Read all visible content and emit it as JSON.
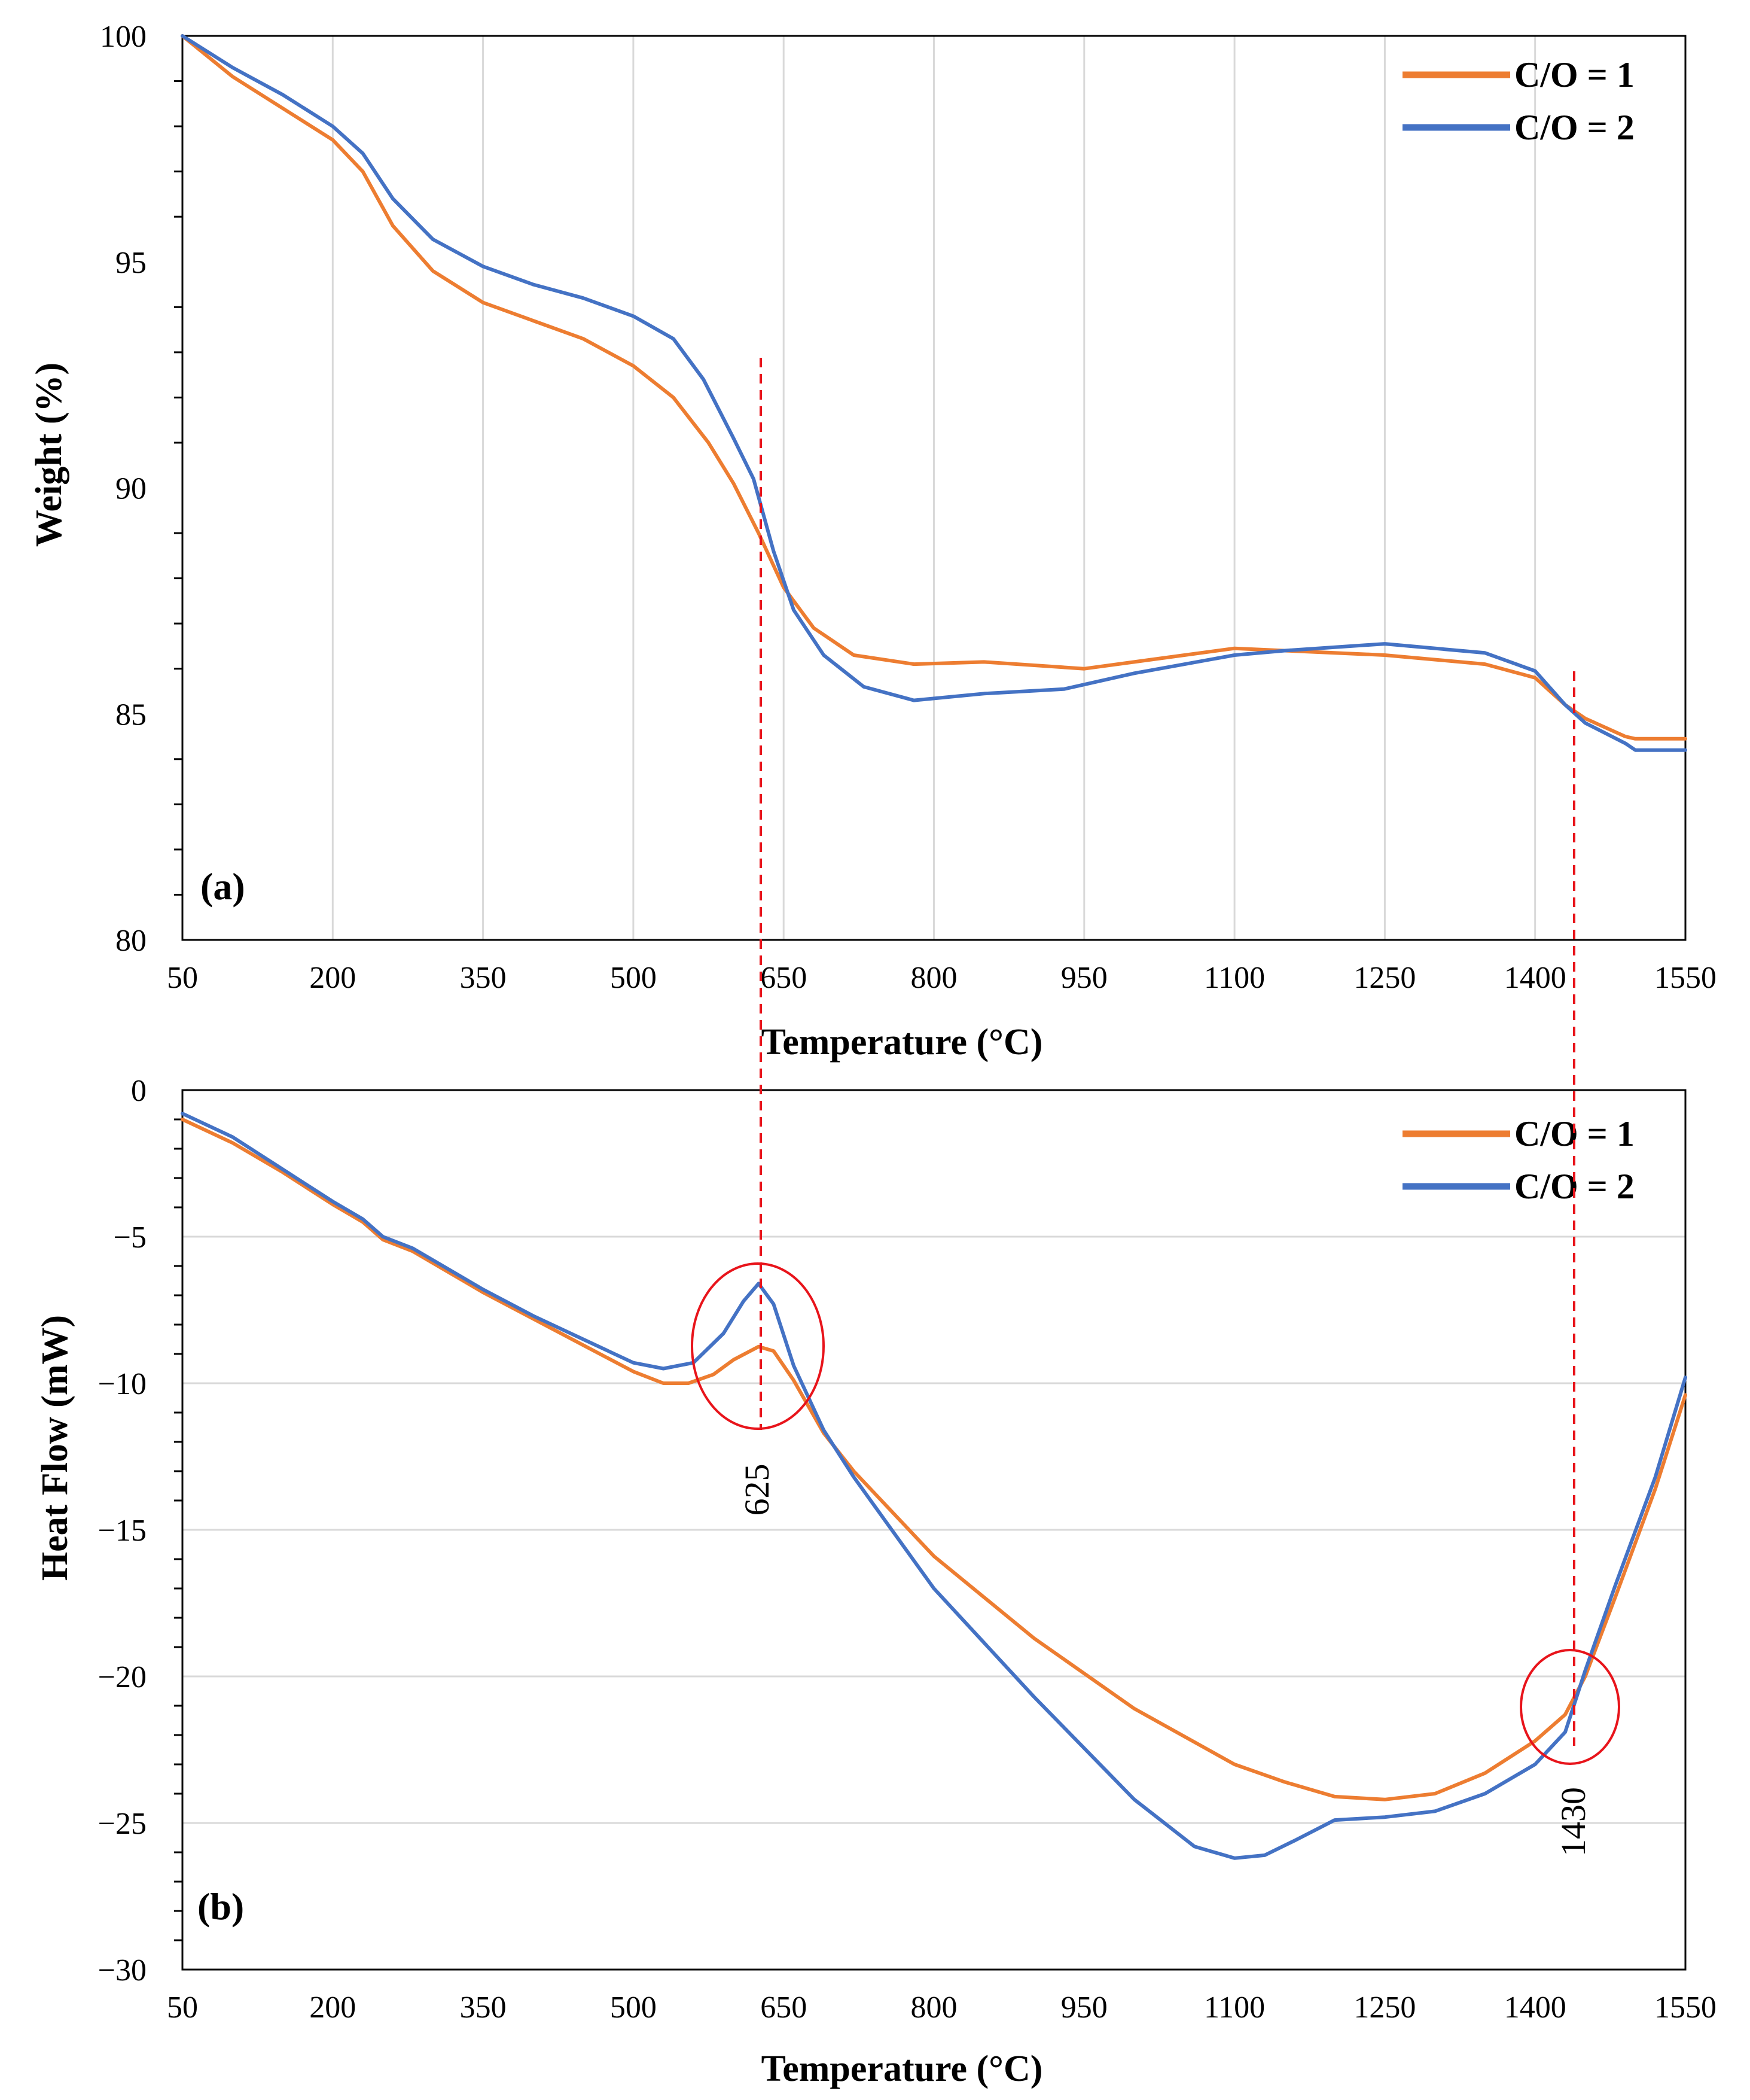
{
  "colors": {
    "series_1": "#ED7D31",
    "series_2": "#4472C4",
    "marker": "#E8141B",
    "grid": "#D9D9D9",
    "axis": "#000000"
  },
  "chart_data": [
    {
      "id": "a",
      "type": "line",
      "panel_label": "(a)",
      "xlabel": "Temperature (°C)",
      "ylabel": "Weight (%)",
      "xlim": [
        50,
        1550
      ],
      "ylim": [
        80,
        100
      ],
      "xticks": [
        50,
        200,
        350,
        500,
        650,
        800,
        950,
        1100,
        1250,
        1400,
        1550
      ],
      "xtick_labels": [
        "50",
        "200",
        "350",
        "500",
        "650",
        "800",
        "950",
        "1100",
        "1250",
        "1400",
        "1550"
      ],
      "yticks": [
        80,
        85,
        90,
        95,
        100
      ],
      "ytick_labels": [
        "80",
        "85",
        "90",
        "95",
        "100"
      ],
      "grid": "vertical",
      "legend_position": "top-right",
      "series": [
        {
          "name": "C/O = 1",
          "color": "#ED7D31",
          "points": [
            [
              50,
              100
            ],
            [
              100,
              99.1
            ],
            [
              150,
              98.4
            ],
            [
              200,
              97.7
            ],
            [
              230,
              97.0
            ],
            [
              260,
              95.8
            ],
            [
              300,
              94.8
            ],
            [
              350,
              94.1
            ],
            [
              400,
              93.7
            ],
            [
              450,
              93.3
            ],
            [
              500,
              92.7
            ],
            [
              540,
              92.0
            ],
            [
              575,
              91.0
            ],
            [
              600,
              90.1
            ],
            [
              625,
              89.0
            ],
            [
              650,
              87.8
            ],
            [
              680,
              86.9
            ],
            [
              720,
              86.3
            ],
            [
              780,
              86.1
            ],
            [
              850,
              86.15
            ],
            [
              950,
              86.0
            ],
            [
              1050,
              86.3
            ],
            [
              1100,
              86.45
            ],
            [
              1150,
              86.4
            ],
            [
              1250,
              86.3
            ],
            [
              1350,
              86.1
            ],
            [
              1400,
              85.8
            ],
            [
              1430,
              85.2
            ],
            [
              1450,
              84.9
            ],
            [
              1490,
              84.5
            ],
            [
              1500,
              84.45
            ],
            [
              1550,
              84.45
            ]
          ]
        },
        {
          "name": "C/O = 2",
          "color": "#4472C4",
          "points": [
            [
              50,
              100
            ],
            [
              100,
              99.3
            ],
            [
              150,
              98.7
            ],
            [
              200,
              98.0
            ],
            [
              230,
              97.4
            ],
            [
              260,
              96.4
            ],
            [
              300,
              95.5
            ],
            [
              350,
              94.9
            ],
            [
              400,
              94.5
            ],
            [
              450,
              94.2
            ],
            [
              500,
              93.8
            ],
            [
              540,
              93.3
            ],
            [
              570,
              92.4
            ],
            [
              600,
              91.1
            ],
            [
              620,
              90.2
            ],
            [
              640,
              88.6
            ],
            [
              660,
              87.3
            ],
            [
              690,
              86.3
            ],
            [
              730,
              85.6
            ],
            [
              780,
              85.3
            ],
            [
              850,
              85.45
            ],
            [
              930,
              85.55
            ],
            [
              1000,
              85.9
            ],
            [
              1100,
              86.3
            ],
            [
              1150,
              86.4
            ],
            [
              1250,
              86.55
            ],
            [
              1350,
              86.35
            ],
            [
              1400,
              85.95
            ],
            [
              1430,
              85.2
            ],
            [
              1450,
              84.8
            ],
            [
              1490,
              84.35
            ],
            [
              1500,
              84.2
            ],
            [
              1550,
              84.2
            ]
          ]
        }
      ]
    },
    {
      "id": "b",
      "type": "line",
      "panel_label": "(b)",
      "xlabel": "Temperature (°C)",
      "ylabel": "Heat Flow  (mW)",
      "xlim": [
        50,
        1550
      ],
      "ylim": [
        -30,
        0
      ],
      "xticks": [
        50,
        200,
        350,
        500,
        650,
        800,
        950,
        1100,
        1250,
        1400,
        1550
      ],
      "xtick_labels": [
        "50",
        "200",
        "350",
        "500",
        "650",
        "800",
        "950",
        "1100",
        "1250",
        "1400",
        "1550"
      ],
      "yticks": [
        -30,
        -25,
        -20,
        -15,
        -10,
        -5,
        0
      ],
      "ytick_labels": [
        "−30",
        "−25",
        "−20",
        "−15",
        "−10",
        "−5",
        "0"
      ],
      "grid": "horizontal",
      "legend_position": "top-right",
      "annotations": [
        "625",
        "1430"
      ],
      "series": [
        {
          "name": "C/O = 1",
          "color": "#ED7D31",
          "points": [
            [
              50,
              -1.0
            ],
            [
              100,
              -1.8
            ],
            [
              150,
              -2.8
            ],
            [
              200,
              -3.9
            ],
            [
              230,
              -4.5
            ],
            [
              250,
              -5.1
            ],
            [
              280,
              -5.5
            ],
            [
              350,
              -6.9
            ],
            [
              400,
              -7.8
            ],
            [
              450,
              -8.7
            ],
            [
              500,
              -9.6
            ],
            [
              530,
              -10.0
            ],
            [
              555,
              -10.0
            ],
            [
              580,
              -9.7
            ],
            [
              600,
              -9.2
            ],
            [
              625,
              -8.75
            ],
            [
              640,
              -8.9
            ],
            [
              660,
              -9.9
            ],
            [
              690,
              -11.7
            ],
            [
              720,
              -13.0
            ],
            [
              800,
              -15.9
            ],
            [
              900,
              -18.7
            ],
            [
              1000,
              -21.1
            ],
            [
              1100,
              -23.0
            ],
            [
              1150,
              -23.6
            ],
            [
              1200,
              -24.1
            ],
            [
              1250,
              -24.2
            ],
            [
              1300,
              -24.0
            ],
            [
              1350,
              -23.3
            ],
            [
              1400,
              -22.2
            ],
            [
              1430,
              -21.3
            ],
            [
              1450,
              -20.0
            ],
            [
              1480,
              -17.3
            ],
            [
              1520,
              -13.6
            ],
            [
              1550,
              -10.4
            ]
          ]
        },
        {
          "name": "C/O = 2",
          "color": "#4472C4",
          "points": [
            [
              50,
              -0.8
            ],
            [
              100,
              -1.6
            ],
            [
              150,
              -2.7
            ],
            [
              200,
              -3.8
            ],
            [
              230,
              -4.4
            ],
            [
              250,
              -5.0
            ],
            [
              280,
              -5.4
            ],
            [
              350,
              -6.8
            ],
            [
              400,
              -7.7
            ],
            [
              450,
              -8.5
            ],
            [
              500,
              -9.3
            ],
            [
              530,
              -9.5
            ],
            [
              560,
              -9.3
            ],
            [
              590,
              -8.3
            ],
            [
              610,
              -7.2
            ],
            [
              625,
              -6.6
            ],
            [
              640,
              -7.3
            ],
            [
              660,
              -9.4
            ],
            [
              690,
              -11.6
            ],
            [
              720,
              -13.2
            ],
            [
              800,
              -17.0
            ],
            [
              900,
              -20.7
            ],
            [
              1000,
              -24.2
            ],
            [
              1060,
              -25.8
            ],
            [
              1100,
              -26.2
            ],
            [
              1130,
              -26.1
            ],
            [
              1160,
              -25.6
            ],
            [
              1200,
              -24.9
            ],
            [
              1250,
              -24.8
            ],
            [
              1300,
              -24.6
            ],
            [
              1350,
              -24.0
            ],
            [
              1400,
              -23.0
            ],
            [
              1430,
              -21.9
            ],
            [
              1450,
              -19.8
            ],
            [
              1480,
              -16.9
            ],
            [
              1520,
              -13.2
            ],
            [
              1550,
              -9.8
            ]
          ]
        }
      ]
    }
  ]
}
